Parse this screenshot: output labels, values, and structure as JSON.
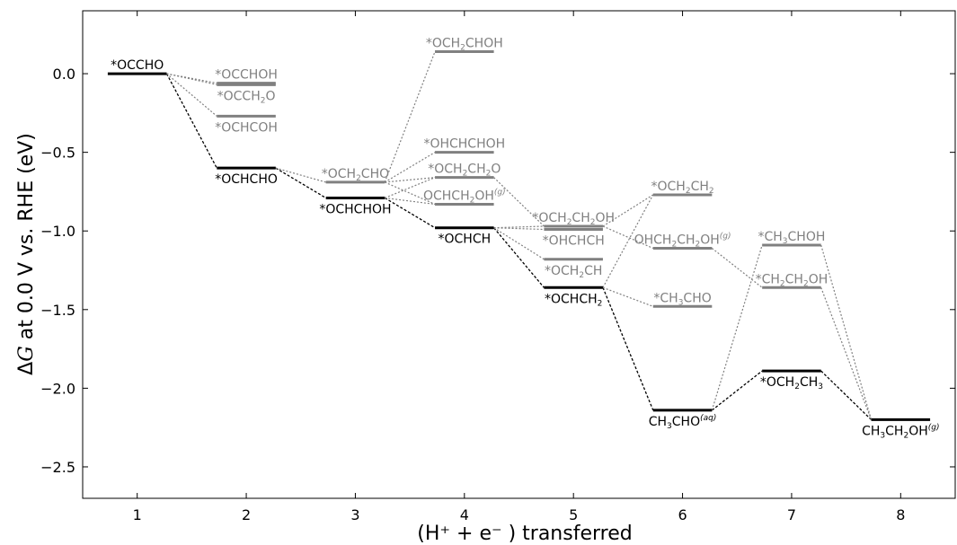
{
  "chart_data": {
    "type": "line",
    "title": "",
    "xlabel": "(H⁺ + e⁻ ) transferred",
    "ylabel_prefix": "Δ",
    "ylabel_var": "G",
    "ylabel_rest": " at 0.0 V vs. RHE (eV)",
    "xlim": [
      0.5,
      8.5
    ],
    "ylim": [
      -2.7,
      0.4
    ],
    "xticks": [
      "1",
      "2",
      "3",
      "4",
      "5",
      "6",
      "7",
      "8"
    ],
    "yticks": [
      "0.0",
      "−0.5",
      "−1.0",
      "−1.5",
      "−2.0",
      "−2.5"
    ],
    "ytick_values": [
      0.0,
      -0.5,
      -1.0,
      -1.5,
      -2.0,
      -2.5
    ],
    "grid": false,
    "colors": {
      "main": "#000000",
      "alt": "#808080"
    },
    "states": [
      {
        "id": "s1",
        "x": 1,
        "y": 0.0,
        "main": true,
        "label": [
          [
            "*OCCHO",
            ""
          ]
        ],
        "label_pos": "above"
      },
      {
        "id": "s2a",
        "x": 2,
        "y": -0.06,
        "main": false,
        "label": [
          [
            "*OCCHOH",
            ""
          ]
        ],
        "label_pos": "above"
      },
      {
        "id": "s2b",
        "x": 2,
        "y": -0.07,
        "main": false,
        "label": [
          [
            "*OCCH",
            ""
          ],
          [
            "2",
            "sub"
          ],
          [
            "O",
            ""
          ]
        ],
        "label_pos": "below"
      },
      {
        "id": "s2c",
        "x": 2,
        "y": -0.27,
        "main": false,
        "label": [
          [
            "*OCHCOH",
            ""
          ]
        ],
        "label_pos": "below"
      },
      {
        "id": "s2",
        "x": 2,
        "y": -0.6,
        "main": true,
        "label": [
          [
            "*OCHCHO",
            ""
          ]
        ],
        "label_pos": "below"
      },
      {
        "id": "s3a",
        "x": 3,
        "y": -0.69,
        "main": false,
        "label": [
          [
            "*OCH",
            ""
          ],
          [
            "2",
            "sub"
          ],
          [
            "CHO",
            ""
          ]
        ],
        "label_pos": "above"
      },
      {
        "id": "s3",
        "x": 3,
        "y": -0.79,
        "main": true,
        "label": [
          [
            "*OCHCHOH",
            ""
          ]
        ],
        "label_pos": "below"
      },
      {
        "id": "s4a",
        "x": 4,
        "y": 0.14,
        "main": false,
        "label": [
          [
            "*OCH",
            ""
          ],
          [
            "2",
            "sub"
          ],
          [
            "CHOH",
            ""
          ]
        ],
        "label_pos": "above"
      },
      {
        "id": "s4b",
        "x": 4,
        "y": -0.5,
        "main": false,
        "label": [
          [
            "*OHCHCHOH",
            ""
          ]
        ],
        "label_pos": "above"
      },
      {
        "id": "s4c",
        "x": 4,
        "y": -0.66,
        "main": false,
        "label": [
          [
            "*OCH",
            ""
          ],
          [
            "2",
            "sub"
          ],
          [
            "CH",
            ""
          ],
          [
            "2",
            "sub"
          ],
          [
            "O",
            ""
          ]
        ],
        "label_pos": "above"
      },
      {
        "id": "s4d",
        "x": 4,
        "y": -0.83,
        "main": false,
        "label": [
          [
            "OCHCH",
            ""
          ],
          [
            "2",
            "sub"
          ],
          [
            "OH",
            ""
          ],
          [
            "(g)",
            "sup"
          ]
        ],
        "label_pos": "above"
      },
      {
        "id": "s4",
        "x": 4,
        "y": -0.98,
        "main": true,
        "label": [
          [
            "*OCHCH",
            ""
          ]
        ],
        "label_pos": "below"
      },
      {
        "id": "s5a",
        "x": 5,
        "y": -0.97,
        "main": false,
        "label": [
          [
            "*OCH",
            ""
          ],
          [
            "2",
            "sub"
          ],
          [
            "CH",
            ""
          ],
          [
            "2",
            "sub"
          ],
          [
            "OH",
            ""
          ]
        ],
        "label_pos": "above"
      },
      {
        "id": "s5b",
        "x": 5,
        "y": -0.99,
        "main": false,
        "label": [
          [
            "*OHCHCH",
            ""
          ]
        ],
        "label_pos": "below"
      },
      {
        "id": "s5c",
        "x": 5,
        "y": -1.18,
        "main": false,
        "label": [
          [
            "*OCH",
            ""
          ],
          [
            "2",
            "sub"
          ],
          [
            "CH",
            ""
          ]
        ],
        "label_pos": "below"
      },
      {
        "id": "s5",
        "x": 5,
        "y": -1.36,
        "main": true,
        "label": [
          [
            "*OCHCH",
            ""
          ],
          [
            "2",
            "sub"
          ]
        ],
        "label_pos": "below"
      },
      {
        "id": "s6a",
        "x": 6,
        "y": -0.77,
        "main": false,
        "label": [
          [
            "*OCH",
            ""
          ],
          [
            "2",
            "sub"
          ],
          [
            "CH",
            ""
          ],
          [
            "2",
            "sub"
          ]
        ],
        "label_pos": "above"
      },
      {
        "id": "s6b",
        "x": 6,
        "y": -1.11,
        "main": false,
        "label": [
          [
            "OHCH",
            ""
          ],
          [
            "2",
            "sub"
          ],
          [
            "CH",
            ""
          ],
          [
            "2",
            "sub"
          ],
          [
            "OH",
            ""
          ],
          [
            "(g)",
            "sup"
          ]
        ],
        "label_pos": "above"
      },
      {
        "id": "s6c",
        "x": 6,
        "y": -1.48,
        "main": false,
        "label": [
          [
            "*CH",
            ""
          ],
          [
            "3",
            "sub"
          ],
          [
            "CHO",
            ""
          ]
        ],
        "label_pos": "above"
      },
      {
        "id": "s6",
        "x": 6,
        "y": -2.14,
        "main": true,
        "label": [
          [
            "CH",
            ""
          ],
          [
            "3",
            "sub"
          ],
          [
            "CHO",
            ""
          ],
          [
            "(aq)",
            "sup"
          ]
        ],
        "label_pos": "below"
      },
      {
        "id": "s7a",
        "x": 7,
        "y": -1.09,
        "main": false,
        "label": [
          [
            "*CH",
            ""
          ],
          [
            "3",
            "sub"
          ],
          [
            "CHOH",
            ""
          ]
        ],
        "label_pos": "above"
      },
      {
        "id": "s7b",
        "x": 7,
        "y": -1.36,
        "main": false,
        "label": [
          [
            "*CH",
            ""
          ],
          [
            "2",
            "sub"
          ],
          [
            "CH",
            ""
          ],
          [
            "2",
            "sub"
          ],
          [
            "OH",
            ""
          ]
        ],
        "label_pos": "above"
      },
      {
        "id": "s7",
        "x": 7,
        "y": -1.89,
        "main": true,
        "label": [
          [
            "*OCH",
            ""
          ],
          [
            "2",
            "sub"
          ],
          [
            "CH",
            ""
          ],
          [
            "3",
            "sub"
          ]
        ],
        "label_pos": "below"
      },
      {
        "id": "s8",
        "x": 8,
        "y": -2.2,
        "main": true,
        "label": [
          [
            "CH",
            ""
          ],
          [
            "3",
            "sub"
          ],
          [
            "CH",
            ""
          ],
          [
            "2",
            "sub"
          ],
          [
            "OH",
            ""
          ],
          [
            "(g)",
            "sup"
          ]
        ],
        "label_pos": "below"
      }
    ],
    "connections": [
      [
        "s1",
        "s2",
        true
      ],
      [
        "s2",
        "s3",
        true
      ],
      [
        "s3",
        "s4",
        true
      ],
      [
        "s4",
        "s5",
        true
      ],
      [
        "s5",
        "s6",
        true
      ],
      [
        "s6",
        "s7",
        true
      ],
      [
        "s7",
        "s8",
        true
      ],
      [
        "s1",
        "s2a",
        false
      ],
      [
        "s1",
        "s2b",
        false
      ],
      [
        "s1",
        "s2c",
        false
      ],
      [
        "s2",
        "s3a",
        false
      ],
      [
        "s3a",
        "s4a",
        false
      ],
      [
        "s3a",
        "s4b",
        false
      ],
      [
        "s3a",
        "s4c",
        false
      ],
      [
        "s3a",
        "s4d",
        false
      ],
      [
        "s3",
        "s4c",
        false
      ],
      [
        "s3",
        "s4d",
        false
      ],
      [
        "s4c",
        "s5a",
        false
      ],
      [
        "s4",
        "s5a",
        false
      ],
      [
        "s4",
        "s5b",
        false
      ],
      [
        "s4",
        "s5c",
        false
      ],
      [
        "s5a",
        "s6a",
        false
      ],
      [
        "s5a",
        "s6b",
        false
      ],
      [
        "s5",
        "s6a",
        false
      ],
      [
        "s5",
        "s6c",
        false
      ],
      [
        "s6",
        "s7a",
        false
      ],
      [
        "s6b",
        "s7b",
        false
      ],
      [
        "s7a",
        "s8",
        false
      ],
      [
        "s7b",
        "s8",
        false
      ]
    ]
  }
}
